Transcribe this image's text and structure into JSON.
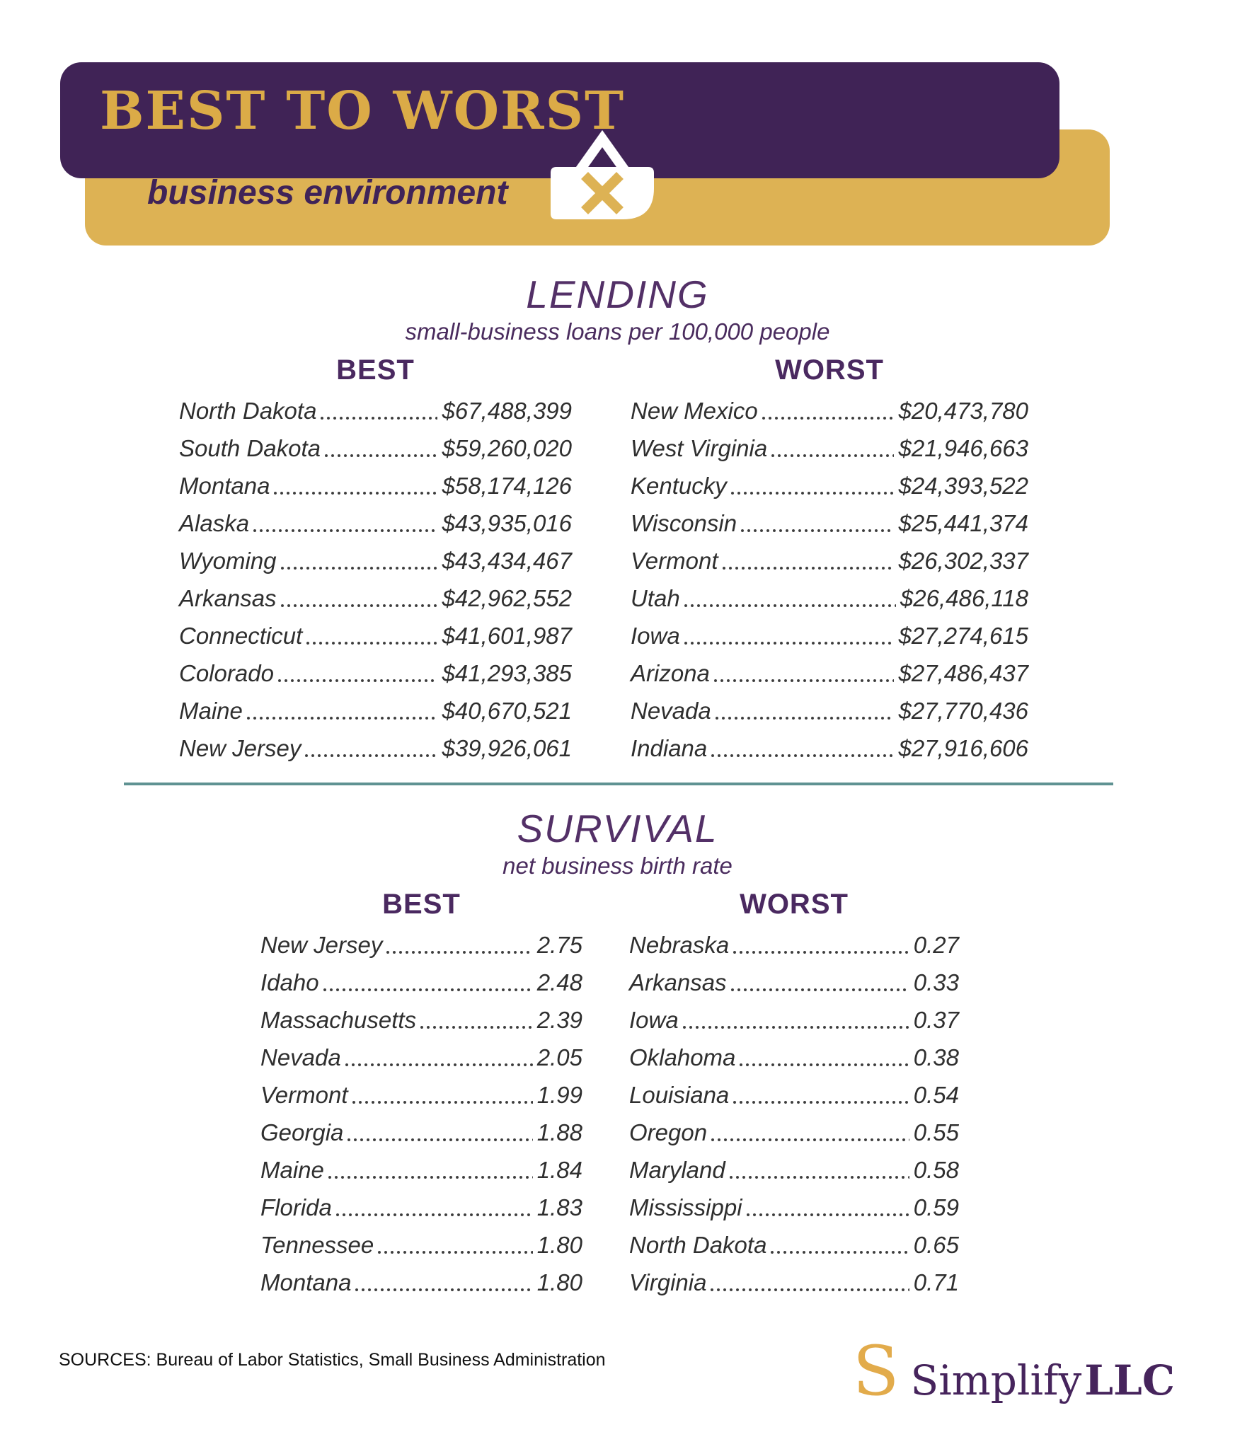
{
  "header": {
    "title": "BEST TO WORST",
    "subtitle": "business environment"
  },
  "chart_data": [
    {
      "type": "table",
      "title": "LENDING",
      "subtitle": "small-business loans per 100,000 people",
      "columns": [
        "BEST",
        "WORST"
      ],
      "best": [
        {
          "state": "North Dakota",
          "value": "$67,488,399"
        },
        {
          "state": "South Dakota",
          "value": "$59,260,020"
        },
        {
          "state": "Montana",
          "value": "$58,174,126"
        },
        {
          "state": "Alaska",
          "value": "$43,935,016"
        },
        {
          "state": "Wyoming",
          "value": "$43,434,467"
        },
        {
          "state": "Arkansas",
          "value": "$42,962,552"
        },
        {
          "state": "Connecticut",
          "value": "$41,601,987"
        },
        {
          "state": "Colorado",
          "value": "$41,293,385"
        },
        {
          "state": "Maine",
          "value": "$40,670,521"
        },
        {
          "state": "New Jersey",
          "value": "$39,926,061"
        }
      ],
      "worst": [
        {
          "state": "New Mexico",
          "value": "$20,473,780"
        },
        {
          "state": "West Virginia",
          "value": "$21,946,663"
        },
        {
          "state": "Kentucky",
          "value": "$24,393,522"
        },
        {
          "state": "Wisconsin",
          "value": "$25,441,374"
        },
        {
          "state": "Vermont",
          "value": "$26,302,337"
        },
        {
          "state": "Utah",
          "value": "$26,486,118"
        },
        {
          "state": "Iowa",
          "value": "$27,274,615"
        },
        {
          "state": "Arizona",
          "value": "$27,486,437"
        },
        {
          "state": "Nevada",
          "value": "$27,770,436"
        },
        {
          "state": "Indiana",
          "value": "$27,916,606"
        }
      ]
    },
    {
      "type": "table",
      "title": "SURVIVAL",
      "subtitle": "net business birth rate",
      "columns": [
        "BEST",
        "WORST"
      ],
      "best": [
        {
          "state": "New Jersey",
          "value": "2.75"
        },
        {
          "state": "Idaho",
          "value": "2.48"
        },
        {
          "state": "Massachusetts",
          "value": "2.39"
        },
        {
          "state": "Nevada",
          "value": "2.05"
        },
        {
          "state": "Vermont",
          "value": "1.99"
        },
        {
          "state": "Georgia",
          "value": "1.88"
        },
        {
          "state": "Maine",
          "value": "1.84"
        },
        {
          "state": "Florida",
          "value": "1.83"
        },
        {
          "state": "Tennessee",
          "value": "1.80"
        },
        {
          "state": "Montana",
          "value": "1.80"
        }
      ],
      "worst": [
        {
          "state": "Nebraska",
          "value": "0.27"
        },
        {
          "state": "Arkansas",
          "value": "0.33"
        },
        {
          "state": "Iowa",
          "value": "0.37"
        },
        {
          "state": "Oklahoma",
          "value": "0.38"
        },
        {
          "state": "Louisiana",
          "value": "0.54"
        },
        {
          "state": "Oregon",
          "value": "0.55"
        },
        {
          "state": "Maryland",
          "value": "0.58"
        },
        {
          "state": "Mississippi",
          "value": "0.59"
        },
        {
          "state": "North Dakota",
          "value": "0.65"
        },
        {
          "state": "Virginia",
          "value": "0.71"
        }
      ]
    }
  ],
  "footer": {
    "sources": "SOURCES: Bureau of Labor Statistics, Small Business Administration",
    "logo": {
      "mark": "S",
      "name": "Simplify",
      "suffix": "LLC"
    }
  },
  "colors": {
    "purple": "#402356",
    "gold": "#ddb254",
    "headline-gold": "#dbab47",
    "env-text": "#3f2358",
    "title-purple": "#533067",
    "subtitle-purple": "#4a2c5e",
    "heading-purple": "#4a2960",
    "row-text": "#2f2f2f",
    "divider": "#5f9292",
    "source-text": "#111111",
    "logo-purple": "#46245c",
    "logo-gold": "#e2ab4b"
  }
}
